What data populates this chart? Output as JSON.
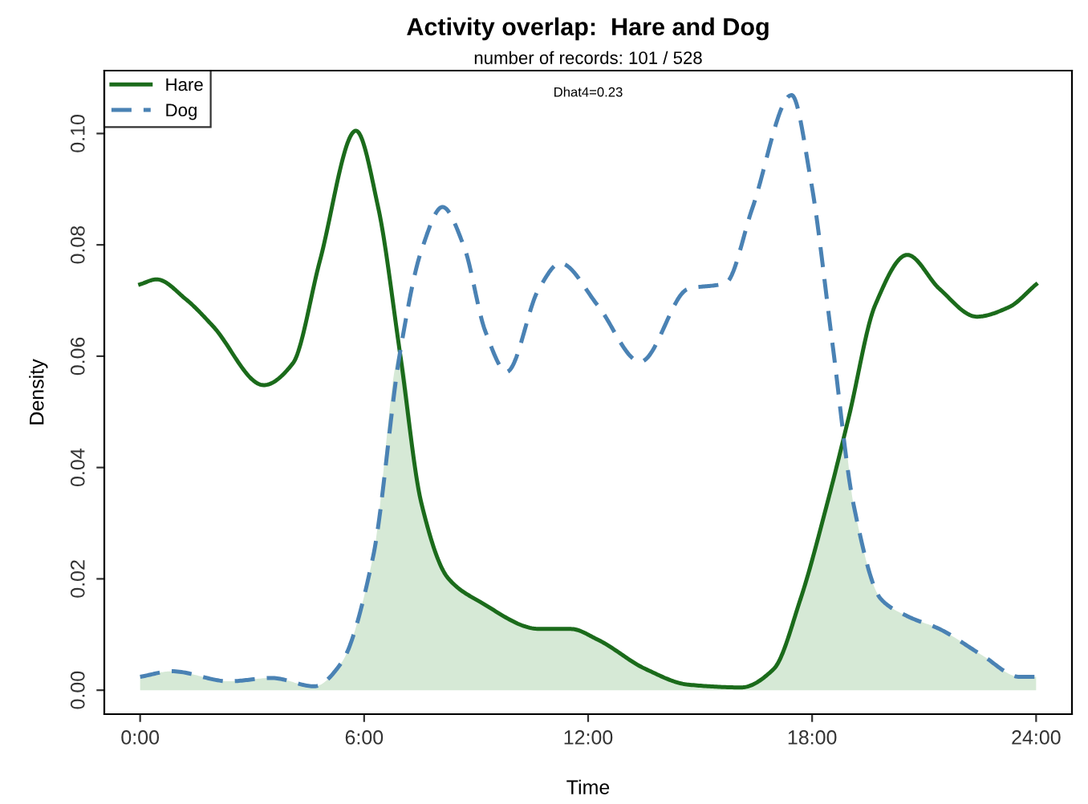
{
  "chart_data": {
    "type": "line",
    "title": "Activity overlap:  Hare and Dog",
    "subtitle": "number of records: 101 / 528",
    "xlabel": "Time",
    "ylabel": "Density",
    "annotations": [
      "Dhat4=0.23"
    ],
    "xlim": [
      -0.96,
      24.96
    ],
    "ylim": [
      -0.0043,
      0.1113
    ],
    "xticks": [
      {
        "value": 0,
        "label": "0:00"
      },
      {
        "value": 6,
        "label": "6:00"
      },
      {
        "value": 12,
        "label": "12:00"
      },
      {
        "value": 18,
        "label": "18:00"
      },
      {
        "value": 24,
        "label": "24:00"
      }
    ],
    "yticks": [
      {
        "value": 0,
        "label": "0.00"
      },
      {
        "value": 0.02,
        "label": "0.02"
      },
      {
        "value": 0.04,
        "label": "0.04"
      },
      {
        "value": 0.06,
        "label": "0.06"
      },
      {
        "value": 0.08,
        "label": "0.08"
      },
      {
        "value": 0.1,
        "label": "0.10"
      }
    ],
    "grid": false,
    "legend": "top left",
    "marker": "none",
    "series": [
      {
        "type": "area",
        "color": "#d6e9d6",
        "x": [
          0,
          0.85,
          2.38,
          3.52,
          4.67,
          5.38,
          6.24,
          6.96,
          7.53,
          8.24,
          9.1,
          10.7,
          11.54,
          12.25,
          13.54,
          14.68,
          16.1,
          16.97,
          17.69,
          18.41,
          18.85,
          19.1,
          19.84,
          20.55,
          21.41,
          22.55,
          23.56,
          24
        ],
        "values": [
          0.0024,
          0.0034,
          0.0016,
          0.0022,
          0.0007,
          0.0048,
          0.024,
          0.0606,
          0.0337,
          0.0202,
          0.0159,
          0.011,
          0.011,
          0.0091,
          0.0038,
          0.001,
          0.0005,
          0.0038,
          0.0164,
          0.0337,
          0.045,
          0.0337,
          0.0164,
          0.0133,
          0.011,
          0.0063,
          0.0024,
          0.0024
        ]
      },
      {
        "name": "Hare",
        "line_style": "solid",
        "color": "#1b6b1b",
        "x": [
          0,
          0.44,
          1.23,
          1.95,
          3.31,
          4.09,
          4.81,
          5.78,
          6.38,
          6.96,
          7.53,
          8.24,
          9.1,
          10.7,
          11.54,
          12.25,
          13.54,
          14.68,
          16.1,
          16.97,
          17.69,
          18.41,
          18.98,
          19.69,
          20.55,
          21.41,
          22.41,
          23.27,
          24
        ],
        "values": [
          0.0729,
          0.0738,
          0.0702,
          0.0654,
          0.0548,
          0.0587,
          0.077,
          0.1005,
          0.0866,
          0.0606,
          0.0337,
          0.0202,
          0.0159,
          0.011,
          0.011,
          0.0091,
          0.0038,
          0.001,
          0.0005,
          0.0038,
          0.0164,
          0.0337,
          0.049,
          0.0692,
          0.0782,
          0.0721,
          0.0671,
          0.0688,
          0.0729
        ]
      },
      {
        "name": "Dog",
        "line_style": "dashed",
        "color": "#4a82b4",
        "x": [
          0,
          0.85,
          2.38,
          3.52,
          4.67,
          5.38,
          6.24,
          6.96,
          7.53,
          8.1,
          8.67,
          9.25,
          9.82,
          10.68,
          11.25,
          12.25,
          13.4,
          14.68,
          15.68,
          16.4,
          17.45,
          17.97,
          18.54,
          19.1,
          19.84,
          20.55,
          21.41,
          22.55,
          23.56,
          24
        ],
        "values": [
          0.0024,
          0.0034,
          0.0016,
          0.0022,
          0.0007,
          0.0048,
          0.024,
          0.0606,
          0.0789,
          0.0868,
          0.0798,
          0.0644,
          0.0572,
          0.0721,
          0.0767,
          0.0692,
          0.059,
          0.0721,
          0.0731,
          0.0866,
          0.1069,
          0.0914,
          0.0625,
          0.0337,
          0.0164,
          0.0133,
          0.011,
          0.0063,
          0.0024,
          0.0024
        ]
      }
    ]
  }
}
